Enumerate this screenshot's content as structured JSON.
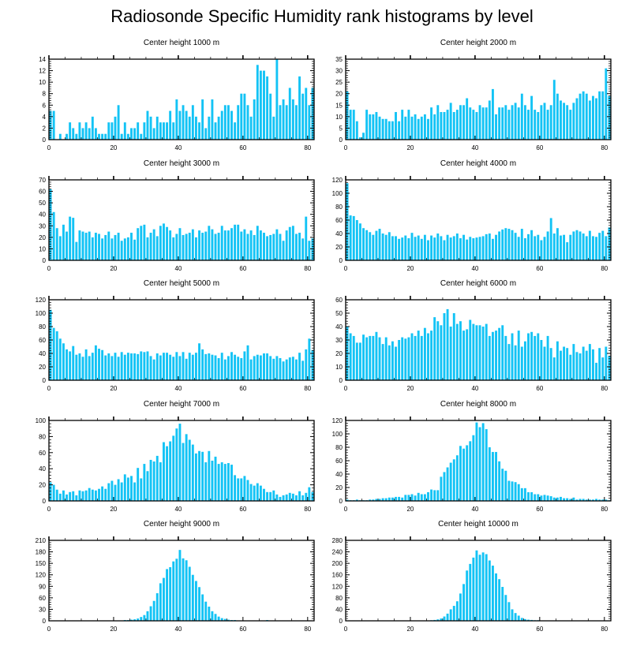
{
  "title": "Radiosonde Specific Humidity rank histograms by level",
  "bar_color": "#13c3f5",
  "chart_data": [
    {
      "type": "bar",
      "title": "Center height 1000 m",
      "xlabel": "",
      "ylabel": "",
      "xlim": [
        0,
        82
      ],
      "ylim": [
        0,
        14
      ],
      "yticks": [
        0,
        2,
        4,
        6,
        8,
        10,
        12,
        14
      ],
      "xticks": [
        0,
        20,
        40,
        60,
        80
      ],
      "values": [
        5,
        5,
        0,
        1,
        0,
        1,
        3,
        2,
        1,
        3,
        2,
        3,
        2,
        4,
        2,
        1,
        1,
        1,
        3,
        3,
        4,
        6,
        1,
        3,
        1,
        2,
        2,
        3,
        1,
        3,
        5,
        4,
        2,
        4,
        3,
        3,
        3,
        5,
        3,
        7,
        5,
        6,
        5,
        4,
        6,
        4,
        3,
        7,
        2,
        4,
        7,
        3,
        4,
        5,
        6,
        6,
        5,
        3,
        6,
        8,
        8,
        6,
        4,
        7,
        13,
        12,
        12,
        11,
        8,
        4,
        14,
        6,
        7,
        6,
        9,
        7,
        6,
        11,
        8,
        9,
        6,
        9
      ]
    },
    {
      "type": "bar",
      "title": "Center height 2000 m",
      "xlabel": "",
      "ylabel": "",
      "xlim": [
        0,
        82
      ],
      "ylim": [
        0,
        35
      ],
      "yticks": [
        0,
        5,
        10,
        15,
        20,
        25,
        30,
        35
      ],
      "xticks": [
        0,
        20,
        40,
        60,
        80
      ],
      "values": [
        21,
        13,
        13,
        8,
        1,
        3,
        13,
        11,
        11,
        12,
        10,
        9,
        9,
        8,
        8,
        12,
        8,
        13,
        10,
        13,
        10,
        11,
        9,
        10,
        11,
        9,
        14,
        11,
        15,
        12,
        12,
        13,
        16,
        12,
        13,
        15,
        15,
        18,
        14,
        13,
        12,
        15,
        14,
        14,
        17,
        22,
        11,
        14,
        14,
        15,
        13,
        15,
        16,
        14,
        20,
        15,
        13,
        19,
        13,
        12,
        15,
        16,
        13,
        15,
        26,
        20,
        17,
        16,
        15,
        13,
        16,
        18,
        20,
        21,
        20,
        17,
        19,
        18,
        21,
        21,
        31,
        19
      ]
    },
    {
      "type": "bar",
      "title": "Center height 3000 m",
      "xlabel": "",
      "ylabel": "",
      "xlim": [
        0,
        82
      ],
      "ylim": [
        0,
        70
      ],
      "yticks": [
        0,
        10,
        20,
        30,
        40,
        50,
        60,
        70
      ],
      "xticks": [
        0,
        20,
        40,
        60,
        80
      ],
      "values": [
        62,
        42,
        28,
        21,
        31,
        25,
        38,
        37,
        16,
        26,
        25,
        24,
        25,
        20,
        24,
        23,
        19,
        22,
        25,
        19,
        22,
        24,
        17,
        19,
        20,
        24,
        18,
        28,
        30,
        31,
        20,
        24,
        27,
        21,
        30,
        32,
        29,
        26,
        20,
        23,
        28,
        22,
        23,
        24,
        27,
        20,
        26,
        24,
        25,
        30,
        27,
        23,
        24,
        30,
        26,
        26,
        28,
        31,
        31,
        25,
        27,
        23,
        26,
        22,
        30,
        26,
        24,
        21,
        22,
        23,
        27,
        23,
        17,
        26,
        29,
        30,
        23,
        24,
        19,
        38,
        17,
        19
      ]
    },
    {
      "type": "bar",
      "title": "Center height 4000 m",
      "xlabel": "",
      "ylabel": "",
      "xlim": [
        0,
        82
      ],
      "ylim": [
        0,
        120
      ],
      "yticks": [
        0,
        20,
        40,
        60,
        80,
        100,
        120
      ],
      "xticks": [
        0,
        20,
        40,
        60,
        80
      ],
      "values": [
        115,
        67,
        66,
        60,
        55,
        48,
        45,
        42,
        38,
        44,
        47,
        40,
        38,
        42,
        36,
        36,
        32,
        34,
        37,
        33,
        41,
        35,
        37,
        32,
        38,
        30,
        37,
        34,
        40,
        36,
        30,
        38,
        34,
        36,
        40,
        33,
        38,
        31,
        35,
        33,
        34,
        35,
        36,
        39,
        40,
        32,
        38,
        43,
        46,
        48,
        47,
        45,
        41,
        35,
        47,
        33,
        39,
        45,
        36,
        38,
        30,
        35,
        43,
        63,
        40,
        48,
        37,
        38,
        27,
        38,
        43,
        45,
        43,
        40,
        36,
        44,
        36,
        35,
        41,
        44,
        36,
        49
      ]
    },
    {
      "type": "bar",
      "title": "Center height 5000 m",
      "xlabel": "",
      "ylabel": "",
      "xlim": [
        0,
        82
      ],
      "ylim": [
        0,
        120
      ],
      "yticks": [
        0,
        20,
        40,
        60,
        80,
        100,
        120
      ],
      "xticks": [
        0,
        20,
        40,
        60,
        80
      ],
      "values": [
        105,
        78,
        73,
        62,
        55,
        46,
        43,
        51,
        38,
        40,
        35,
        46,
        36,
        41,
        52,
        47,
        45,
        37,
        40,
        36,
        41,
        35,
        42,
        38,
        41,
        40,
        40,
        39,
        43,
        42,
        43,
        36,
        31,
        40,
        37,
        41,
        41,
        38,
        35,
        42,
        36,
        42,
        32,
        41,
        38,
        41,
        55,
        46,
        39,
        40,
        38,
        37,
        33,
        41,
        31,
        36,
        42,
        38,
        35,
        33,
        43,
        52,
        31,
        36,
        38,
        37,
        40,
        40,
        36,
        32,
        36,
        33,
        28,
        31,
        34,
        35,
        31,
        41,
        29,
        46,
        62,
        45
      ]
    },
    {
      "type": "bar",
      "title": "Center height 6000 m",
      "xlabel": "",
      "ylabel": "",
      "xlim": [
        0,
        82
      ],
      "ylim": [
        0,
        60
      ],
      "yticks": [
        0,
        10,
        20,
        30,
        40,
        50,
        60
      ],
      "xticks": [
        0,
        20,
        40,
        60,
        80
      ],
      "values": [
        40,
        35,
        33,
        28,
        28,
        34,
        32,
        33,
        33,
        36,
        32,
        27,
        32,
        26,
        29,
        25,
        30,
        32,
        31,
        32,
        35,
        33,
        37,
        33,
        39,
        35,
        37,
        47,
        44,
        41,
        50,
        53,
        40,
        50,
        42,
        44,
        37,
        38,
        45,
        42,
        41,
        41,
        40,
        42,
        33,
        36,
        37,
        39,
        41,
        33,
        27,
        35,
        26,
        37,
        25,
        29,
        35,
        36,
        33,
        35,
        30,
        25,
        33,
        24,
        17,
        29,
        22,
        25,
        24,
        19,
        27,
        21,
        20,
        25,
        22,
        27,
        23,
        13,
        24,
        17,
        25,
        18
      ]
    },
    {
      "type": "bar",
      "title": "Center height 7000 m",
      "xlabel": "",
      "ylabel": "",
      "xlim": [
        0,
        82
      ],
      "ylim": [
        0,
        100
      ],
      "yticks": [
        0,
        20,
        40,
        60,
        80,
        100
      ],
      "xticks": [
        0,
        20,
        40,
        60,
        80
      ],
      "values": [
        23,
        20,
        14,
        9,
        13,
        8,
        11,
        12,
        7,
        13,
        12,
        13,
        16,
        14,
        13,
        15,
        18,
        15,
        22,
        25,
        20,
        27,
        23,
        33,
        29,
        31,
        23,
        41,
        28,
        46,
        37,
        51,
        49,
        56,
        48,
        73,
        68,
        74,
        81,
        90,
        96,
        72,
        83,
        76,
        70,
        59,
        62,
        61,
        48,
        62,
        50,
        55,
        46,
        48,
        46,
        47,
        45,
        32,
        28,
        28,
        31,
        26,
        21,
        19,
        22,
        19,
        15,
        11,
        11,
        13,
        8,
        5,
        7,
        8,
        10,
        9,
        7,
        12,
        7,
        10,
        17,
        11
      ]
    },
    {
      "type": "bar",
      "title": "Center height 8000 m",
      "xlabel": "",
      "ylabel": "",
      "xlim": [
        0,
        82
      ],
      "ylim": [
        0,
        120
      ],
      "yticks": [
        0,
        20,
        40,
        60,
        80,
        100,
        120
      ],
      "xticks": [
        0,
        20,
        40,
        60,
        80
      ],
      "values": [
        2,
        1,
        1,
        2,
        1,
        1,
        1,
        2,
        2,
        3,
        3,
        4,
        4,
        5,
        5,
        6,
        6,
        5,
        9,
        9,
        10,
        8,
        12,
        10,
        10,
        13,
        17,
        16,
        16,
        36,
        43,
        50,
        57,
        62,
        68,
        82,
        78,
        83,
        89,
        98,
        117,
        110,
        116,
        107,
        80,
        73,
        73,
        59,
        48,
        45,
        30,
        29,
        28,
        25,
        19,
        19,
        13,
        13,
        10,
        10,
        8,
        9,
        8,
        7,
        5,
        5,
        6,
        4,
        4,
        3,
        5,
        2,
        3,
        3,
        2,
        2,
        2,
        3,
        2,
        2,
        2,
        1
      ]
    },
    {
      "type": "bar",
      "title": "Center height 9000 m",
      "xlabel": "",
      "ylabel": "",
      "xlim": [
        0,
        82
      ],
      "ylim": [
        0,
        210
      ],
      "yticks": [
        0,
        30,
        60,
        90,
        120,
        150,
        180,
        210
      ],
      "xticks": [
        0,
        20,
        40,
        60,
        80
      ],
      "values": [
        0,
        0,
        0,
        0,
        0,
        0,
        0,
        0,
        0,
        0,
        0,
        0,
        0,
        0,
        0,
        0,
        0,
        0,
        0,
        0,
        0,
        1,
        1,
        2,
        2,
        3,
        4,
        6,
        10,
        15,
        25,
        38,
        52,
        72,
        98,
        112,
        135,
        140,
        155,
        162,
        185,
        163,
        158,
        141,
        120,
        104,
        88,
        69,
        50,
        37,
        25,
        18,
        11,
        7,
        5,
        3,
        2,
        2,
        1,
        1,
        1,
        1,
        1,
        0,
        1,
        1,
        0,
        2,
        0,
        1,
        0,
        1,
        0,
        0,
        0,
        0,
        0,
        0,
        0,
        0,
        0,
        0
      ]
    },
    {
      "type": "bar",
      "title": "Center height 10000 m",
      "xlabel": "",
      "ylabel": "",
      "xlim": [
        0,
        82
      ],
      "ylim": [
        0,
        280
      ],
      "yticks": [
        0,
        40,
        80,
        120,
        160,
        200,
        240,
        280
      ],
      "xticks": [
        0,
        20,
        40,
        60,
        80
      ],
      "values": [
        0,
        0,
        0,
        0,
        0,
        0,
        0,
        0,
        0,
        0,
        0,
        0,
        0,
        0,
        0,
        0,
        0,
        0,
        0,
        0,
        0,
        0,
        0,
        0,
        0,
        1,
        2,
        3,
        5,
        8,
        15,
        25,
        40,
        52,
        68,
        95,
        128,
        175,
        198,
        220,
        245,
        230,
        238,
        232,
        210,
        192,
        165,
        145,
        118,
        90,
        65,
        40,
        27,
        18,
        10,
        6,
        4,
        3,
        2,
        2,
        1,
        1,
        1,
        0,
        0,
        0,
        0,
        0,
        0,
        0,
        0,
        0,
        0,
        0,
        0,
        0,
        0,
        0,
        0,
        0,
        0,
        0
      ]
    }
  ]
}
